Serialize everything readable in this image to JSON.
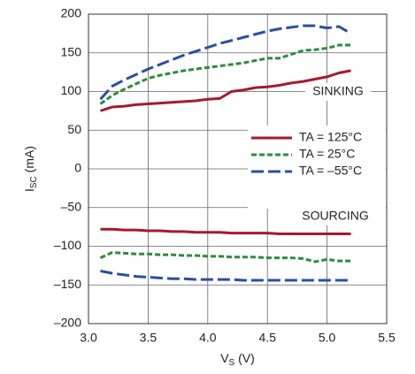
{
  "chart_data": {
    "type": "line",
    "xlabel_parts": [
      "V",
      "S",
      " (V)"
    ],
    "ylabel_parts": [
      "I",
      "SC",
      " (mA)"
    ],
    "annotations": [
      "SINKING",
      "SOURCING"
    ],
    "x": [
      3.1,
      3.2,
      3.3,
      3.4,
      3.5,
      3.6,
      3.7,
      3.8,
      3.9,
      4.0,
      4.1,
      4.2,
      4.3,
      4.4,
      4.5,
      4.6,
      4.7,
      4.8,
      4.9,
      5.0,
      5.1,
      5.2
    ],
    "series": [
      {
        "name": "TA = 125°C",
        "color": "#a6192e",
        "dash": "solid",
        "values": [
          75,
          80,
          81,
          83,
          84,
          85,
          86,
          87,
          88,
          90,
          91,
          100,
          102,
          105,
          106,
          108,
          111,
          113,
          116,
          119,
          124,
          127
        ]
      },
      {
        "name": "TA = 25°C",
        "color": "#2e8b3e",
        "dash": "short",
        "values": [
          84,
          95,
          103,
          110,
          117,
          121,
          124,
          127,
          129,
          131,
          133,
          135,
          137,
          140,
          143,
          143,
          148,
          153,
          154,
          156,
          160,
          160
        ]
      },
      {
        "name": "TA = –55°C",
        "color": "#2a4fa0",
        "dash": "long",
        "values": [
          90,
          107,
          115,
          122,
          129,
          135,
          141,
          147,
          152,
          157,
          162,
          166,
          170,
          174,
          178,
          181,
          183,
          185,
          185,
          182,
          184,
          175
        ]
      },
      {
        "color": "#a6192e",
        "dash": "solid",
        "values": [
          -78,
          -78,
          -79,
          -79,
          -80,
          -80,
          -81,
          -81,
          -82,
          -82,
          -82,
          -83,
          -83,
          -83,
          -83,
          -84,
          -84,
          -84,
          -84,
          -84,
          -84,
          -84
        ]
      },
      {
        "color": "#2e8b3e",
        "dash": "short",
        "values": [
          -115,
          -108,
          -109,
          -110,
          -110,
          -111,
          -111,
          -112,
          -112,
          -113,
          -113,
          -114,
          -114,
          -114,
          -115,
          -115,
          -115,
          -116,
          -120,
          -117,
          -119,
          -119
        ]
      },
      {
        "color": "#2a4fa0",
        "dash": "long",
        "values": [
          -132,
          -135,
          -137,
          -139,
          -140,
          -141,
          -142,
          -142,
          -143,
          -143,
          -143,
          -143,
          -144,
          -144,
          -144,
          -144,
          -144,
          -144,
          -144,
          -144,
          -144,
          -144
        ]
      }
    ],
    "xlim": [
      3.0,
      5.5
    ],
    "xticks": [
      {
        "value": 3,
        "label": "3.0"
      },
      3.5,
      {
        "value": 4,
        "label": "4.0"
      },
      4.5,
      {
        "value": 5,
        "label": "5.0"
      },
      5.5
    ],
    "ylim": [
      -200,
      200
    ],
    "yticks": [
      200,
      150,
      100,
      50,
      0,
      {
        "value": -50,
        "label": "–50"
      },
      {
        "value": -100,
        "label": "–100"
      },
      {
        "value": -150,
        "label": "–150"
      },
      {
        "value": -200,
        "label": "–200"
      }
    ],
    "grid": true
  }
}
